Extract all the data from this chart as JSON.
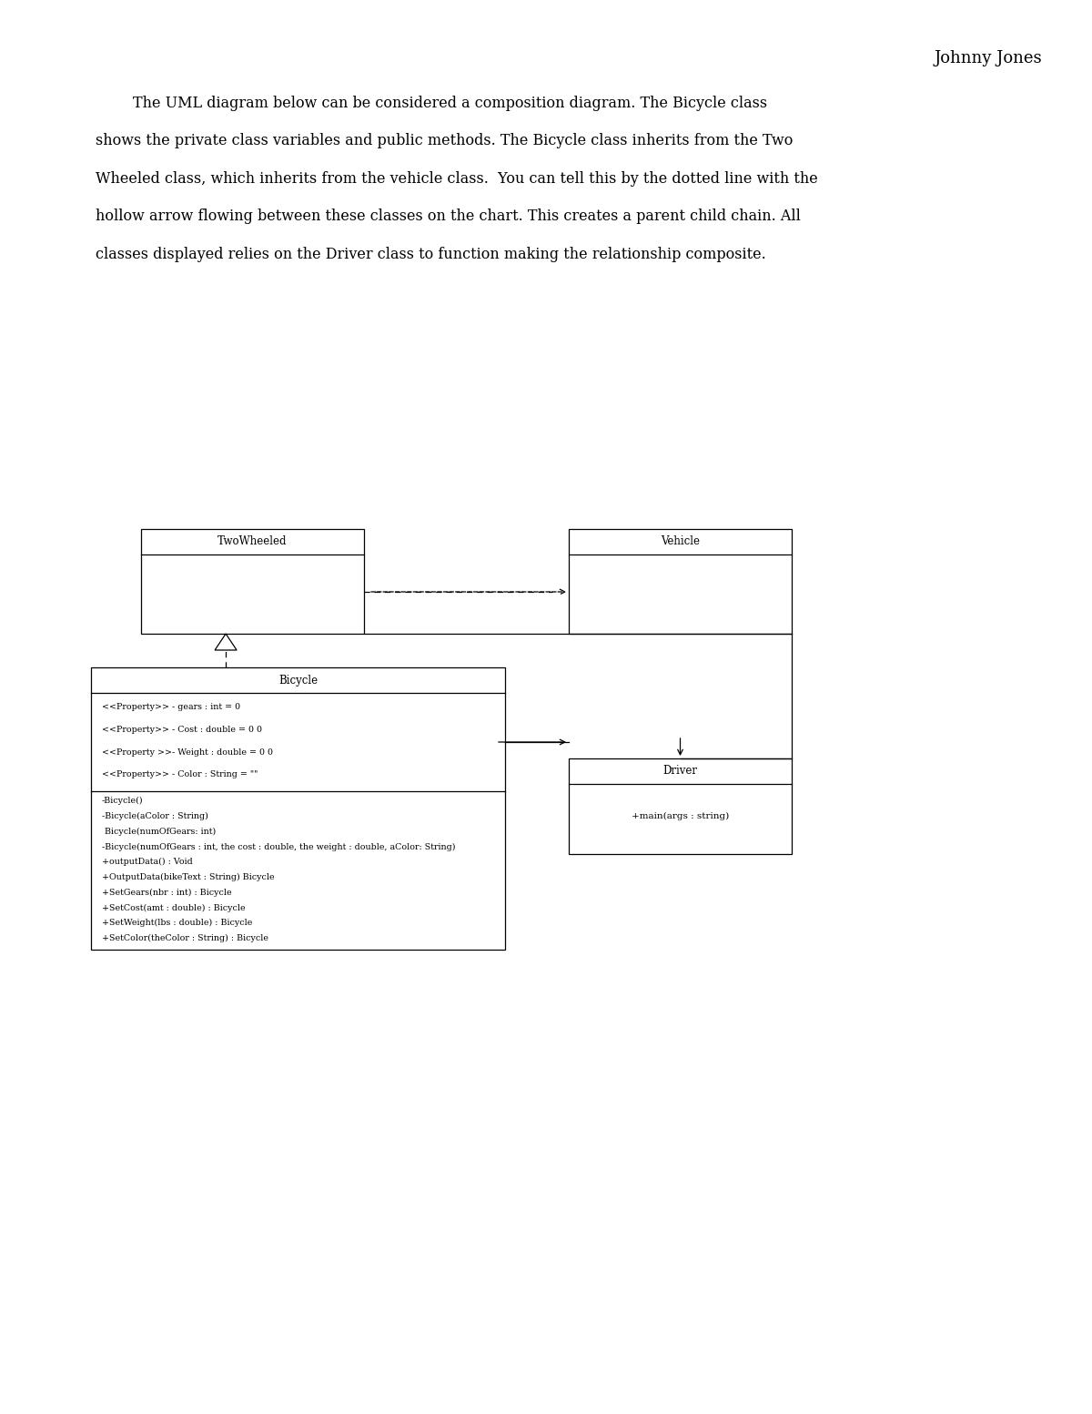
{
  "background_color": "#ffffff",
  "page_width": 12.0,
  "page_height": 15.53,
  "header_name": "Johnny Jones",
  "header_fontsize": 13,
  "body_lines": [
    "        The UML diagram below can be considered a composition diagram. The Bicycle class",
    "shows the private class variables and public methods. The Bicycle class inherits from the Two",
    "Wheeled class, which inherits from the vehicle class.  You can tell this by the dotted line with the",
    "hollow arrow flowing between these classes on the chart. This creates a parent child chain. All",
    "classes displayed relies on the Driver class to function making the relationship composite."
  ],
  "body_fontsize": 11.5,
  "bicycle_props": [
    "<<Property>> - gears : int = 0",
    "<<Property>> - Cost : double = 0 0",
    "<<Property >>- Weight : double = 0 0",
    "<<Property>> - Color : String = \"\""
  ],
  "bicycle_methods": [
    "-Bicycle()",
    "-Bicycle(aColor : String)",
    " Bicycle(numOfGears: int)",
    "-Bicycle(numOfGears : int, the cost : double, the weight : double, aColor: String)",
    "+outputData() : Void",
    "+OutputData(bikeText : String) Bicycle",
    "+SetGears(nbr : int) : Bicycle",
    "+SetCost(amt : double) : Bicycle",
    "+SetWeight(lbs : double) : Bicycle",
    "+SetColor(theColor : String) : Bicycle"
  ],
  "driver_methods": [
    "+main(args : string)"
  ]
}
